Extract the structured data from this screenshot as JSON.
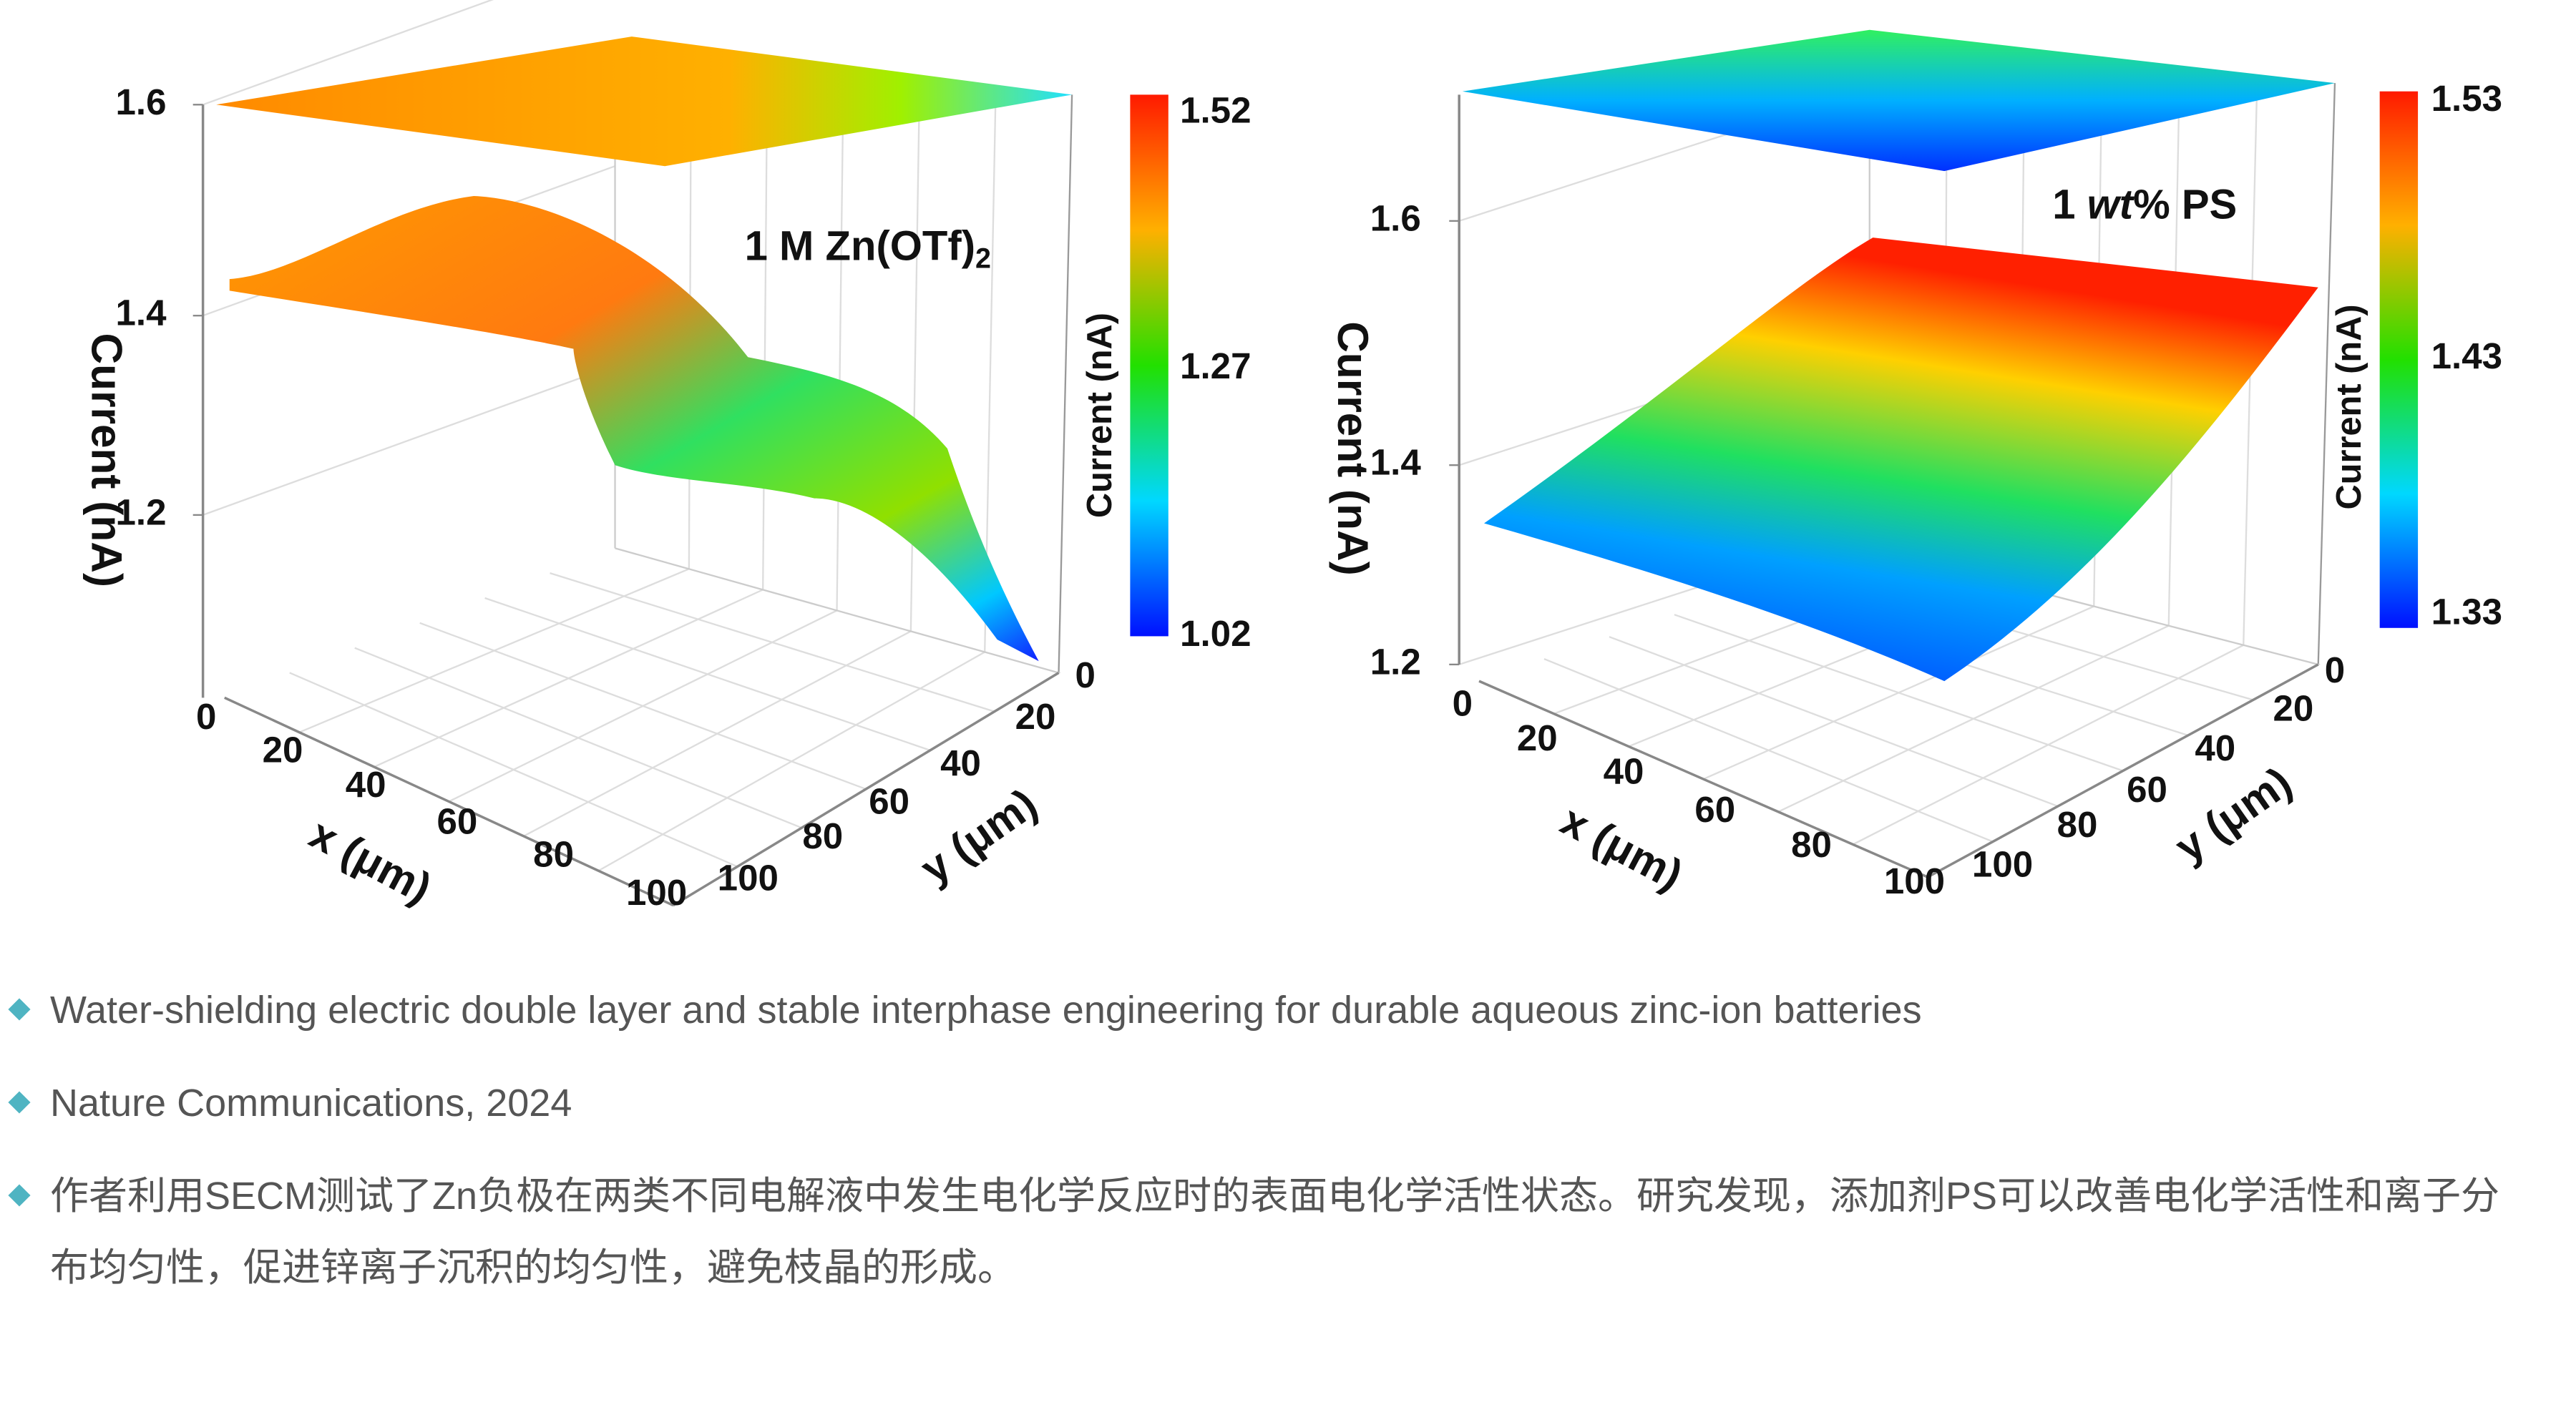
{
  "figures": [
    {
      "label": [
        "1 M Zn(OTf)",
        "2"
      ],
      "z_axis_title": "Current (nA)",
      "z_ticks": [
        "1.2",
        "1.4",
        "1.6"
      ],
      "x_axis_title": "x (μm)",
      "x_ticks": [
        "0",
        "20",
        "40",
        "60",
        "80",
        "100"
      ],
      "y_axis_title": "y (μm)",
      "y_ticks": [
        "0",
        "20",
        "40",
        "60",
        "80",
        "100"
      ],
      "colorbar_title": "Current (nA)",
      "colorbar_ticks": [
        "1.02",
        "1.27",
        "1.52"
      ]
    },
    {
      "label": [
        "1 ",
        "wt",
        "% PS"
      ],
      "z_axis_title": "Current (nA)",
      "z_ticks": [
        "1.2",
        "1.4",
        "1.6"
      ],
      "x_axis_title": "x (μm)",
      "x_ticks": [
        "0",
        "20",
        "40",
        "60",
        "80",
        "100"
      ],
      "y_axis_title": "y (μm)",
      "y_ticks": [
        "0",
        "20",
        "40",
        "60",
        "80",
        "100"
      ],
      "colorbar_title": "Current (nA)",
      "colorbar_ticks": [
        "1.33",
        "1.43",
        "1.53"
      ]
    }
  ],
  "bullets": [
    "Water-shielding electric double layer and stable interphase engineering for durable aqueous zinc-ion batteries",
    "Nature Communications, 2024",
    "作者利用SECM测试了Zn负极在两类不同电解液中发生电化学反应时的表面电化学活性状态。研究发现，添加剂PS可以改善电化学活性和离子分布均匀性，促进锌离子沉积的均匀性，避免枝晶的形成。"
  ]
}
